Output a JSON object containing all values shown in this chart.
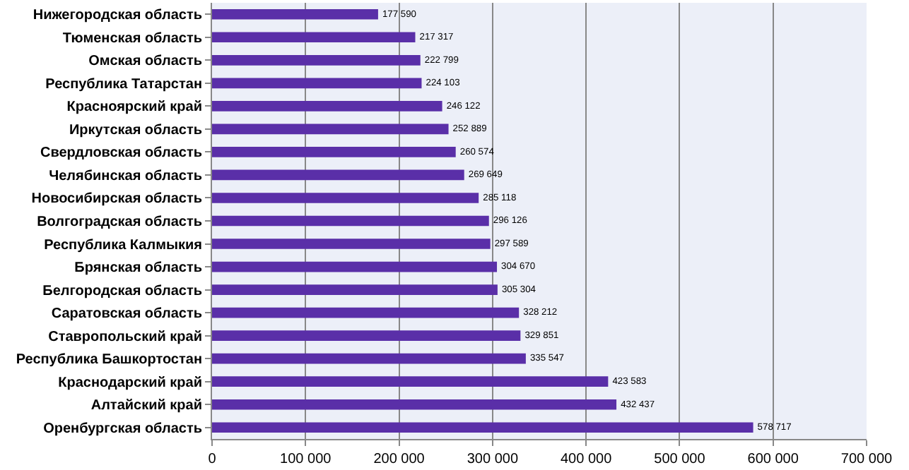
{
  "chart_data": {
    "type": "bar",
    "orientation": "horizontal",
    "categories": [
      "Нижегородская область",
      "Тюменская область",
      "Омская область",
      "Республика Татарстан",
      "Красноярский край",
      "Иркутская область",
      "Свердловская область",
      "Челябинская область",
      "Новосибирская область",
      "Волгоградская область",
      "Республика Калмыкия",
      "Брянская область",
      "Белгородская область",
      "Саратовская область",
      "Ставропольский край",
      "Республика Башкортостан",
      "Краснодарский край",
      "Алтайский край",
      "Оренбургская область"
    ],
    "values": [
      177590,
      217317,
      222799,
      224103,
      246122,
      252889,
      260574,
      269649,
      285118,
      296126,
      297589,
      304670,
      305304,
      328212,
      329851,
      335547,
      423583,
      432437,
      578717
    ],
    "value_labels": [
      "177 590",
      "217 317",
      "222 799",
      "224 103",
      "246 122",
      "252 889",
      "260 574",
      "269 649",
      "285 118",
      "296 126",
      "297 589",
      "304 670",
      "305 304",
      "328 212",
      "329 851",
      "335 547",
      "423 583",
      "432 437",
      "578 717"
    ],
    "color": "#5a2fa8",
    "xlim": [
      0,
      700000
    ],
    "xticks": [
      0,
      {
        "value": 100000,
        "label": "100 000"
      },
      {
        "value": 200000,
        "label": "200 000"
      },
      {
        "value": 300000,
        "label": "300 000"
      },
      {
        "value": 400000,
        "label": "400 000"
      },
      {
        "value": 500000,
        "label": "500 000"
      },
      {
        "value": 600000,
        "label": "600 000"
      },
      {
        "value": 700000,
        "label": "700 000"
      }
    ],
    "grid": "x"
  }
}
